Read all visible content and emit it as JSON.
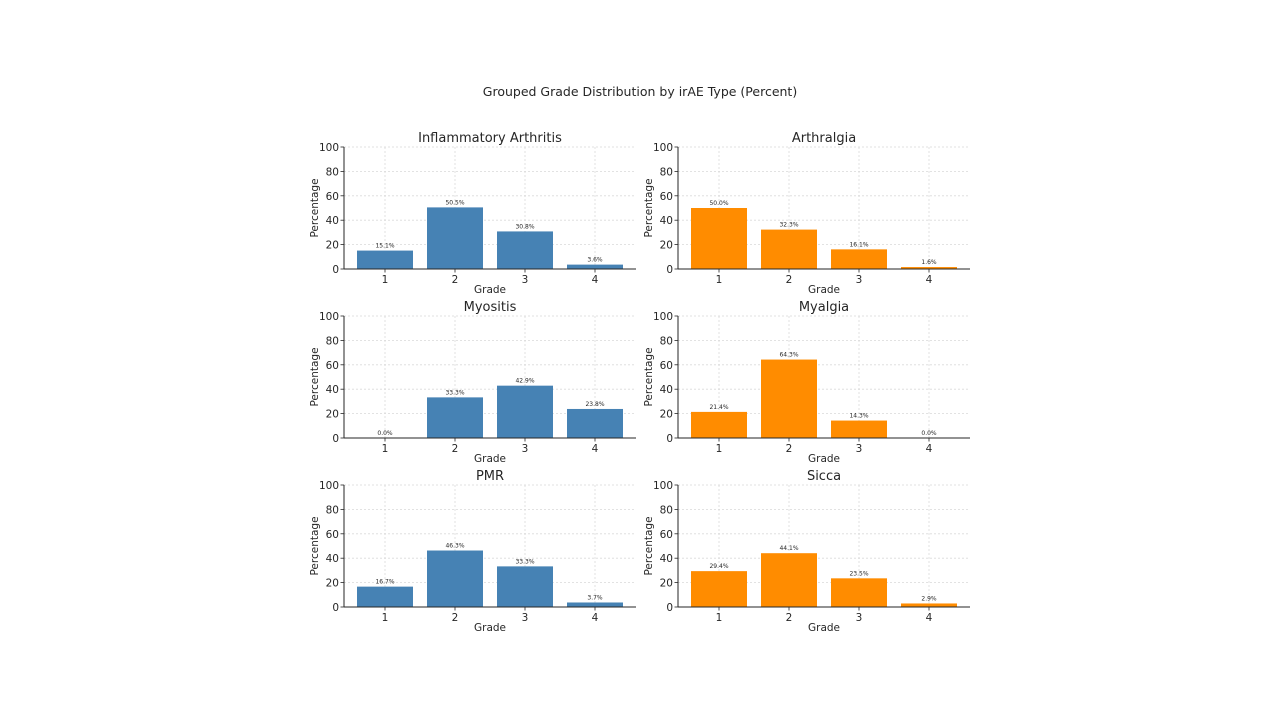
{
  "figure": {
    "title": "Grouped Grade Distribution by irAE Type (Percent)"
  },
  "colors": {
    "blue": "#4682b4",
    "orange": "#ff8c00",
    "grid": "#d9d9d9",
    "axis": "#262626"
  },
  "chart_data": [
    {
      "type": "bar",
      "title": "Inflammatory Arthritis",
      "xlabel": "Grade",
      "ylabel": "Percentage",
      "categories": [
        "1",
        "2",
        "3",
        "4"
      ],
      "values": [
        15.1,
        50.5,
        30.8,
        3.6
      ],
      "value_labels": [
        "15.1%",
        "50.5%",
        "30.8%",
        "3.6%"
      ],
      "ylim": [
        0,
        100
      ],
      "yticks": [
        "0",
        "20",
        "40",
        "60",
        "80",
        "100"
      ],
      "grid": true,
      "color": "#4682b4"
    },
    {
      "type": "bar",
      "title": "Arthralgia",
      "xlabel": "Grade",
      "ylabel": "Percentage",
      "categories": [
        "1",
        "2",
        "3",
        "4"
      ],
      "values": [
        50.0,
        32.3,
        16.1,
        1.6
      ],
      "value_labels": [
        "50.0%",
        "32.3%",
        "16.1%",
        "1.6%"
      ],
      "ylim": [
        0,
        100
      ],
      "yticks": [
        "0",
        "20",
        "40",
        "60",
        "80",
        "100"
      ],
      "grid": true,
      "color": "#ff8c00"
    },
    {
      "type": "bar",
      "title": "Myositis",
      "xlabel": "Grade",
      "ylabel": "Percentage",
      "categories": [
        "1",
        "2",
        "3",
        "4"
      ],
      "values": [
        0.0,
        33.3,
        42.9,
        23.8
      ],
      "value_labels": [
        "0.0%",
        "33.3%",
        "42.9%",
        "23.8%"
      ],
      "ylim": [
        0,
        100
      ],
      "yticks": [
        "0",
        "20",
        "40",
        "60",
        "80",
        "100"
      ],
      "grid": true,
      "color": "#4682b4"
    },
    {
      "type": "bar",
      "title": "Myalgia",
      "xlabel": "Grade",
      "ylabel": "Percentage",
      "categories": [
        "1",
        "2",
        "3",
        "4"
      ],
      "values": [
        21.4,
        64.3,
        14.3,
        0.0
      ],
      "value_labels": [
        "21.4%",
        "64.3%",
        "14.3%",
        "0.0%"
      ],
      "ylim": [
        0,
        100
      ],
      "yticks": [
        "0",
        "20",
        "40",
        "60",
        "80",
        "100"
      ],
      "grid": true,
      "color": "#ff8c00"
    },
    {
      "type": "bar",
      "title": "PMR",
      "xlabel": "Grade",
      "ylabel": "Percentage",
      "categories": [
        "1",
        "2",
        "3",
        "4"
      ],
      "values": [
        16.7,
        46.3,
        33.3,
        3.7
      ],
      "value_labels": [
        "16.7%",
        "46.3%",
        "33.3%",
        "3.7%"
      ],
      "ylim": [
        0,
        100
      ],
      "yticks": [
        "0",
        "20",
        "40",
        "60",
        "80",
        "100"
      ],
      "grid": true,
      "color": "#4682b4"
    },
    {
      "type": "bar",
      "title": "Sicca",
      "xlabel": "Grade",
      "ylabel": "Percentage",
      "categories": [
        "1",
        "2",
        "3",
        "4"
      ],
      "values": [
        29.4,
        44.1,
        23.5,
        2.9
      ],
      "value_labels": [
        "29.4%",
        "44.1%",
        "23.5%",
        "2.9%"
      ],
      "ylim": [
        0,
        100
      ],
      "yticks": [
        "0",
        "20",
        "40",
        "60",
        "80",
        "100"
      ],
      "grid": true,
      "color": "#ff8c00"
    }
  ]
}
